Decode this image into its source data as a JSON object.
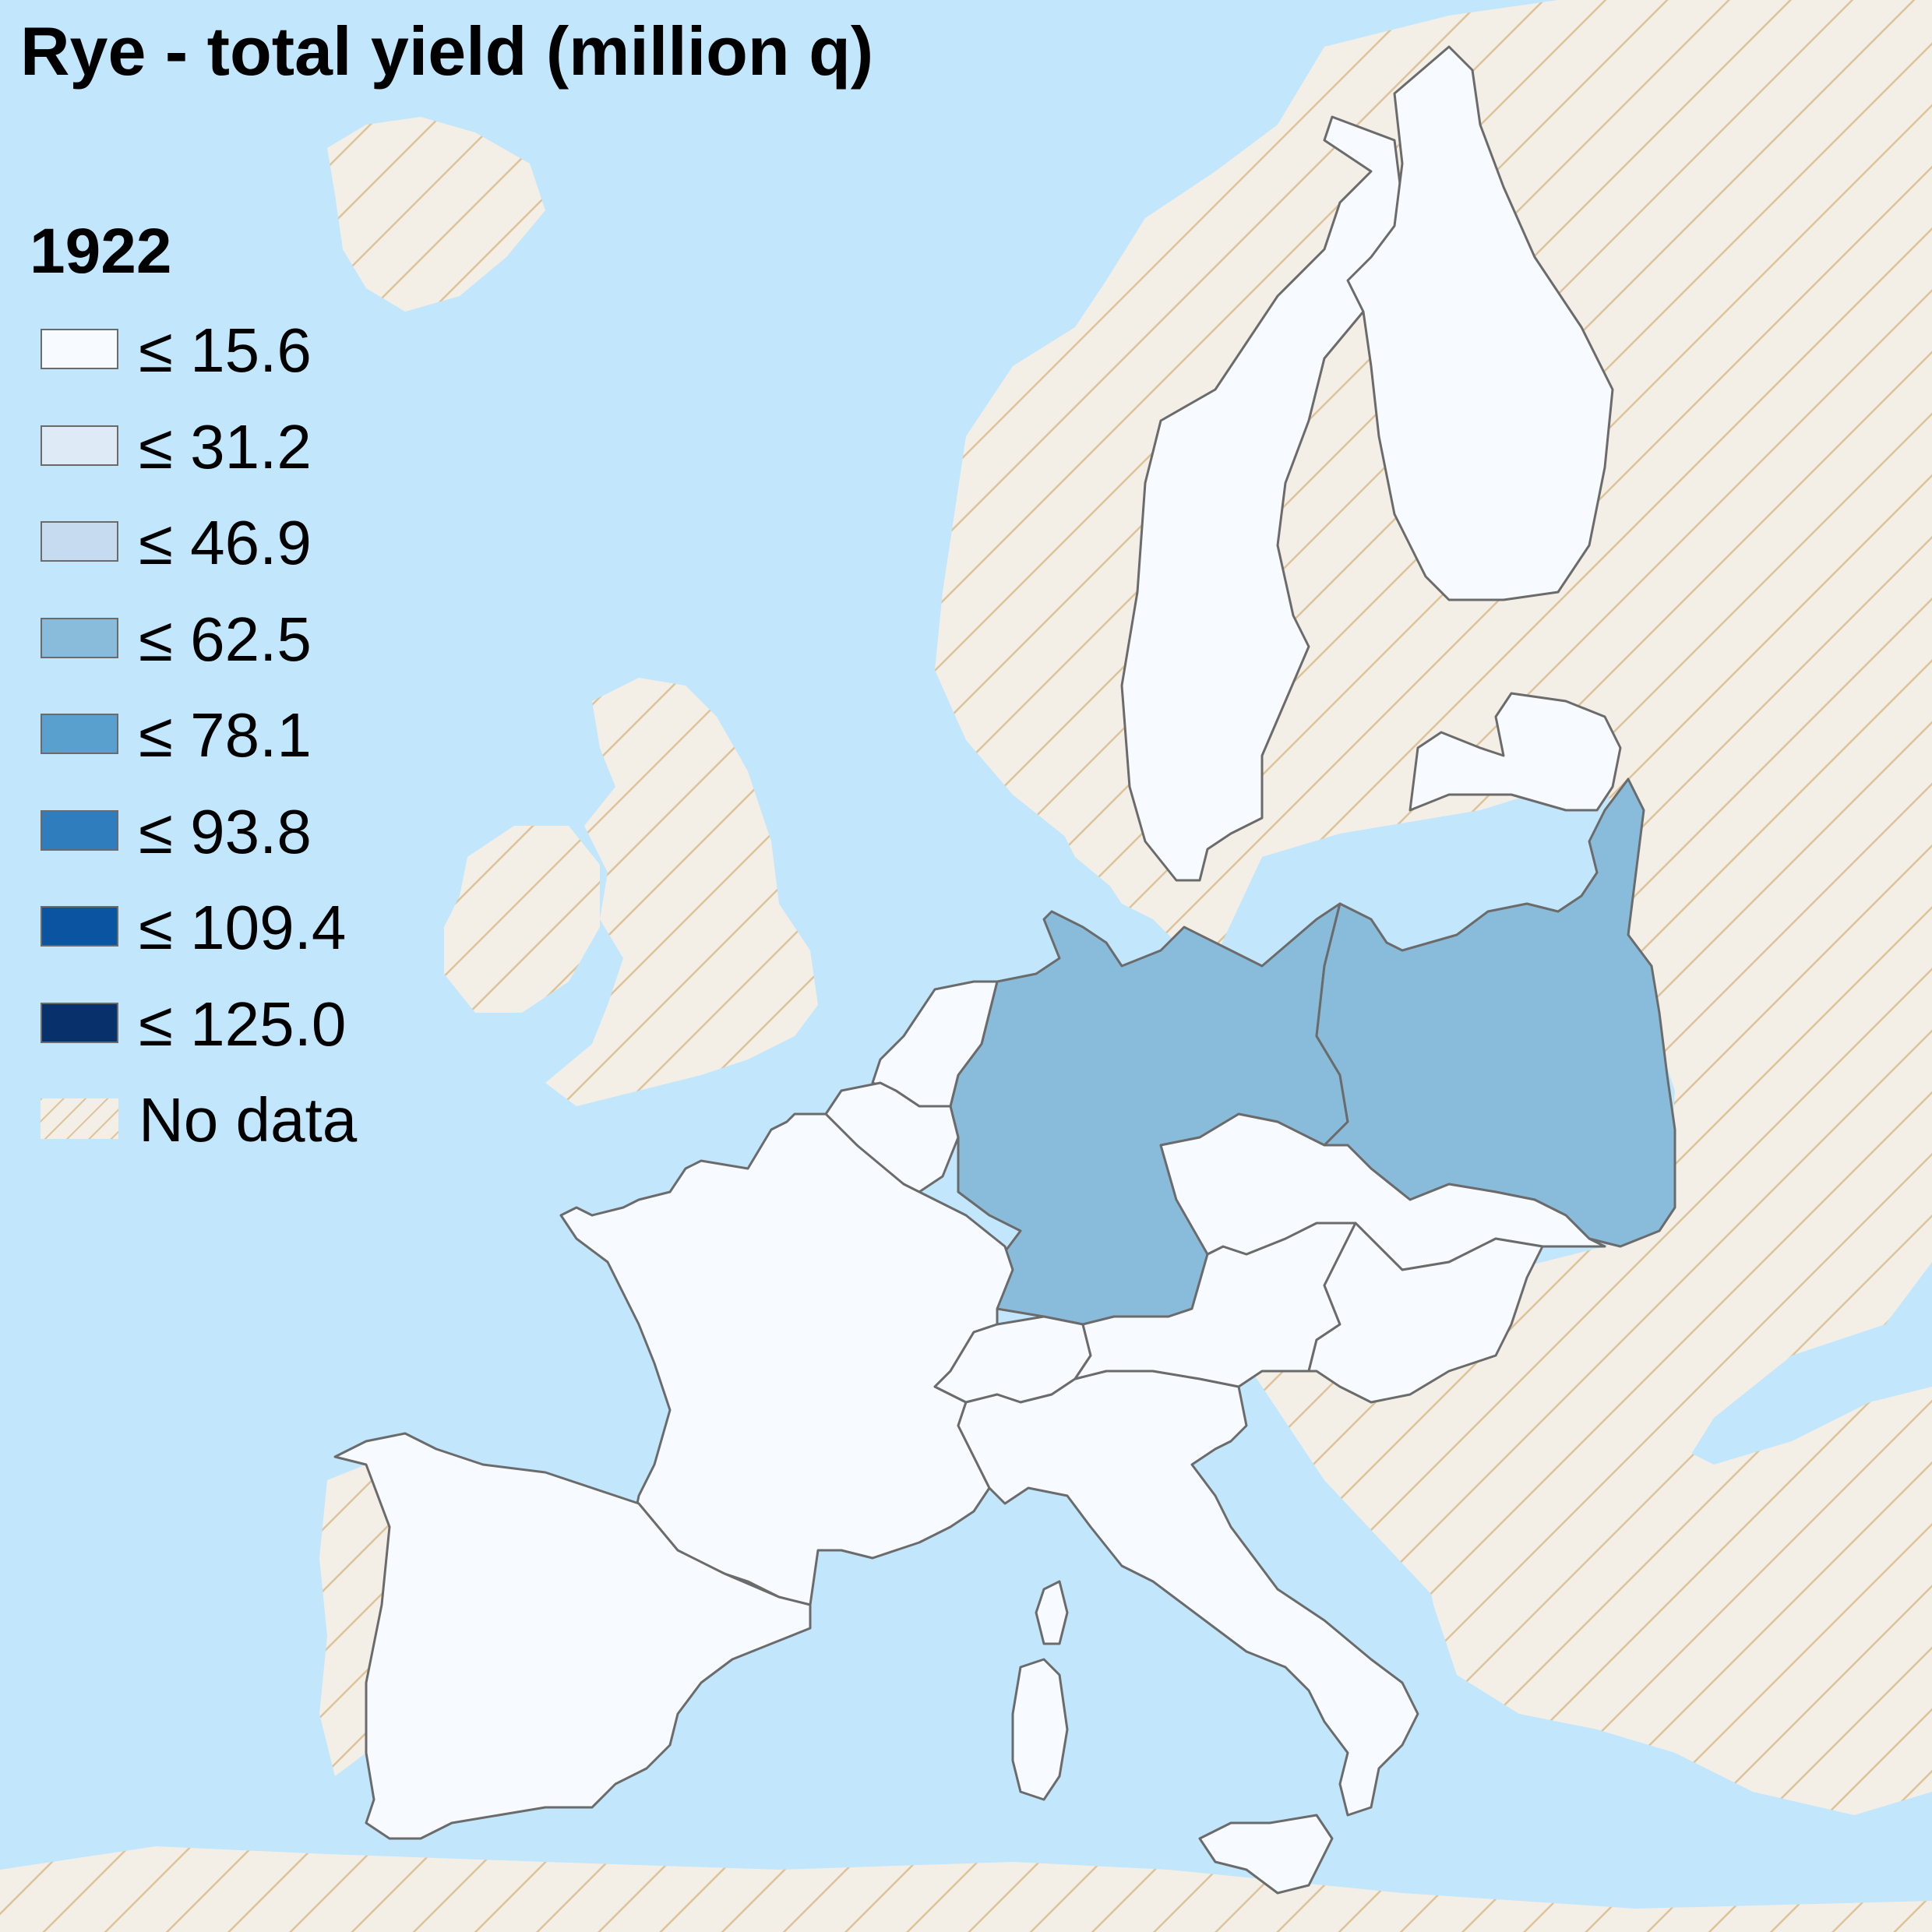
{
  "title": "Rye - total yield (million q)",
  "legend": {
    "year": "1922",
    "items": [
      {
        "label": "≤ 15.6",
        "color": "#f7fbff"
      },
      {
        "label": "≤ 31.2",
        "color": "#deebf7"
      },
      {
        "label": "≤ 46.9",
        "color": "#c6dbef"
      },
      {
        "label": "≤ 62.5",
        "color": "#89bcdb"
      },
      {
        "label": "≤ 78.1",
        "color": "#5aa0cf"
      },
      {
        "label": "≤ 93.8",
        "color": "#2f7dbd"
      },
      {
        "label": "≤ 109.4",
        "color": "#0b54a2"
      },
      {
        "label": "≤ 125.0",
        "color": "#08306b"
      },
      {
        "label": "No data",
        "color": "#f4efe6",
        "pattern": "hatched"
      }
    ]
  },
  "colors": {
    "sea": "#c2e6fb",
    "no_data_fill": "#f4efe6",
    "hatch": "#dcc39a",
    "border": "#6b6b6b"
  },
  "regions": [
    {
      "name": "Sweden",
      "class": "≤ 15.6"
    },
    {
      "name": "Finland",
      "class": "≤ 15.6"
    },
    {
      "name": "Latvia",
      "class": "≤ 15.6"
    },
    {
      "name": "Germany",
      "class": "≤ 62.5"
    },
    {
      "name": "Poland",
      "class": "≤ 62.5"
    },
    {
      "name": "Netherlands",
      "class": "≤ 15.6"
    },
    {
      "name": "Belgium",
      "class": "≤ 15.6"
    },
    {
      "name": "France",
      "class": "≤ 15.6"
    },
    {
      "name": "Spain",
      "class": "≤ 15.6"
    },
    {
      "name": "Switzerland",
      "class": "≤ 15.6"
    },
    {
      "name": "Italy",
      "class": "≤ 15.6"
    },
    {
      "name": "Sardinia",
      "class": "≤ 15.6"
    },
    {
      "name": "Sicily",
      "class": "≤ 15.6"
    },
    {
      "name": "Austria",
      "class": "≤ 15.6"
    },
    {
      "name": "Czechoslovakia",
      "class": "≤ 15.6"
    },
    {
      "name": "Hungary",
      "class": "≤ 15.6"
    }
  ]
}
